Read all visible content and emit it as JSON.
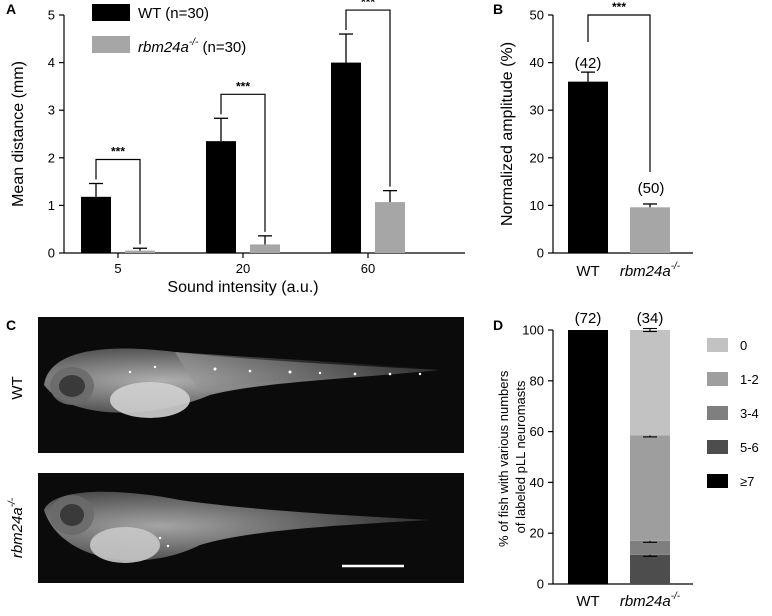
{
  "panels": {
    "A": "A",
    "B": "B",
    "C": "C",
    "D": "D"
  },
  "colors": {
    "wt": "#000000",
    "mut": "#a6a6a6",
    "d0": "#c2c2c2",
    "d12": "#9e9e9e",
    "d34": "#7f7f7f",
    "d56": "#4d4d4d",
    "d7": "#000000"
  },
  "chart_data": [
    {
      "panel": "A",
      "type": "bar",
      "xlabel": "Sound intensity (a.u.)",
      "ylabel": "Mean distance (mm)",
      "ylim": [
        0,
        5
      ],
      "yticks": [
        "0",
        "1",
        "2",
        "3",
        "4",
        "5"
      ],
      "categories": [
        "5",
        "20",
        "60"
      ],
      "legend_position": "top-left",
      "series": [
        {
          "name": "WT (n=30)",
          "label_main": "WT",
          "label_rest": " (n=30)",
          "values": [
            1.18,
            2.35,
            4.0
          ],
          "errors": [
            0.28,
            0.48,
            0.6
          ]
        },
        {
          "name": "rbm24a-/- (n=30)",
          "label_main": "rbm24a",
          "label_sup": "-/-",
          "label_rest": " (n=30)",
          "values": [
            0.05,
            0.18,
            1.07
          ],
          "errors": [
            0.05,
            0.18,
            0.24
          ]
        }
      ],
      "significance": [
        "***",
        "***",
        "***"
      ]
    },
    {
      "panel": "B",
      "type": "bar",
      "ylabel": "Normalized amplitude (%)",
      "ylim": [
        0,
        50
      ],
      "yticks": [
        "0",
        "10",
        "20",
        "30",
        "40",
        "50"
      ],
      "categories": [
        {
          "main": "WT",
          "sup": ""
        },
        {
          "main": "rbm24a",
          "sup": "-/-"
        }
      ],
      "values": [
        36,
        9.6
      ],
      "errors": [
        2.0,
        0.7
      ],
      "counts": [
        "(42)",
        "(50)"
      ],
      "significance": "***"
    },
    {
      "panel": "D",
      "type": "bar",
      "stacked": true,
      "ylabel": "% of fish with various numbers of labeled pLL neuromasts",
      "ylabel_lines": [
        "% of fish with various numbers",
        "of labeled pLL neuromasts"
      ],
      "ylim": [
        0,
        100
      ],
      "yticks": [
        "0",
        "20",
        "40",
        "60",
        "80",
        "100"
      ],
      "categories": [
        {
          "main": "WT",
          "sup": ""
        },
        {
          "main": "rbm24a",
          "sup": "-/-"
        }
      ],
      "counts": [
        "(72)",
        "(34)"
      ],
      "legend_position": "right",
      "series": [
        {
          "name": "≥7",
          "values": [
            100,
            0
          ]
        },
        {
          "name": "5-6",
          "values": [
            0,
            11.5
          ]
        },
        {
          "name": "3-4",
          "values": [
            0,
            5.5
          ]
        },
        {
          "name": "1-2",
          "values": [
            0,
            41.5
          ]
        },
        {
          "name": "0",
          "values": [
            0,
            41.5
          ]
        }
      ],
      "legend_order": [
        "0",
        "1-2",
        "3-4",
        "5-6",
        "≥7"
      ]
    }
  ],
  "images": {
    "wt_label": "WT",
    "mut_label_main": "rbm24a",
    "mut_label_sup": "-/-"
  }
}
